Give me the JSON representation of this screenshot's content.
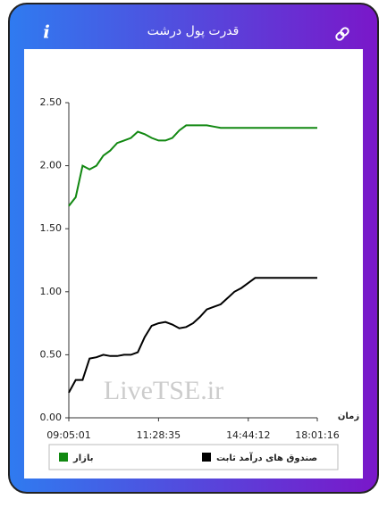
{
  "header": {
    "icon": "i",
    "title": "قدرت پول درشت"
  },
  "watermark": "LiveTSE.ir",
  "chart_data": {
    "type": "line",
    "xlabel": "زمان",
    "categories": [
      "09:05:01",
      null,
      null,
      null,
      null,
      null,
      null,
      null,
      null,
      null,
      null,
      null,
      null,
      "11:28:35",
      null,
      null,
      null,
      null,
      null,
      null,
      null,
      null,
      null,
      null,
      null,
      null,
      "14:44:12",
      null,
      null,
      null,
      null,
      null,
      null,
      null,
      null,
      null,
      "18:01:16"
    ],
    "series": [
      {
        "name": "بازار",
        "color": "#118811",
        "values": [
          1.68,
          1.75,
          2.0,
          1.97,
          2.0,
          2.08,
          2.12,
          2.18,
          2.2,
          2.22,
          2.27,
          2.25,
          2.22,
          2.2,
          2.2,
          2.22,
          2.28,
          2.32,
          2.32,
          2.32,
          2.32,
          2.31,
          2.3,
          2.3,
          2.3,
          2.3,
          2.3,
          2.3,
          2.3,
          2.3,
          2.3,
          2.3,
          2.3,
          2.3,
          2.3,
          2.3,
          2.3
        ]
      },
      {
        "name": "صندوق های درآمد ثابت",
        "color": "#000000",
        "values": [
          0.2,
          0.3,
          0.3,
          0.47,
          0.48,
          0.5,
          0.49,
          0.49,
          0.5,
          0.5,
          0.52,
          0.64,
          0.73,
          0.75,
          0.76,
          0.74,
          0.71,
          0.72,
          0.75,
          0.8,
          0.86,
          0.88,
          0.9,
          0.95,
          1.0,
          1.03,
          1.07,
          1.11,
          1.11,
          1.11,
          1.11,
          1.11,
          1.11,
          1.11,
          1.11,
          1.11,
          1.11
        ]
      }
    ],
    "ylim": [
      0,
      2.5
    ],
    "yticks": [
      {
        "value": 0,
        "label": "0.00"
      },
      {
        "value": 0.5,
        "label": "0.50"
      },
      {
        "value": 1,
        "label": "1.00"
      },
      {
        "value": 1.5,
        "label": "1.50"
      },
      {
        "value": 2,
        "label": "2.00"
      },
      {
        "value": 2.5,
        "label": "2.50"
      }
    ]
  }
}
